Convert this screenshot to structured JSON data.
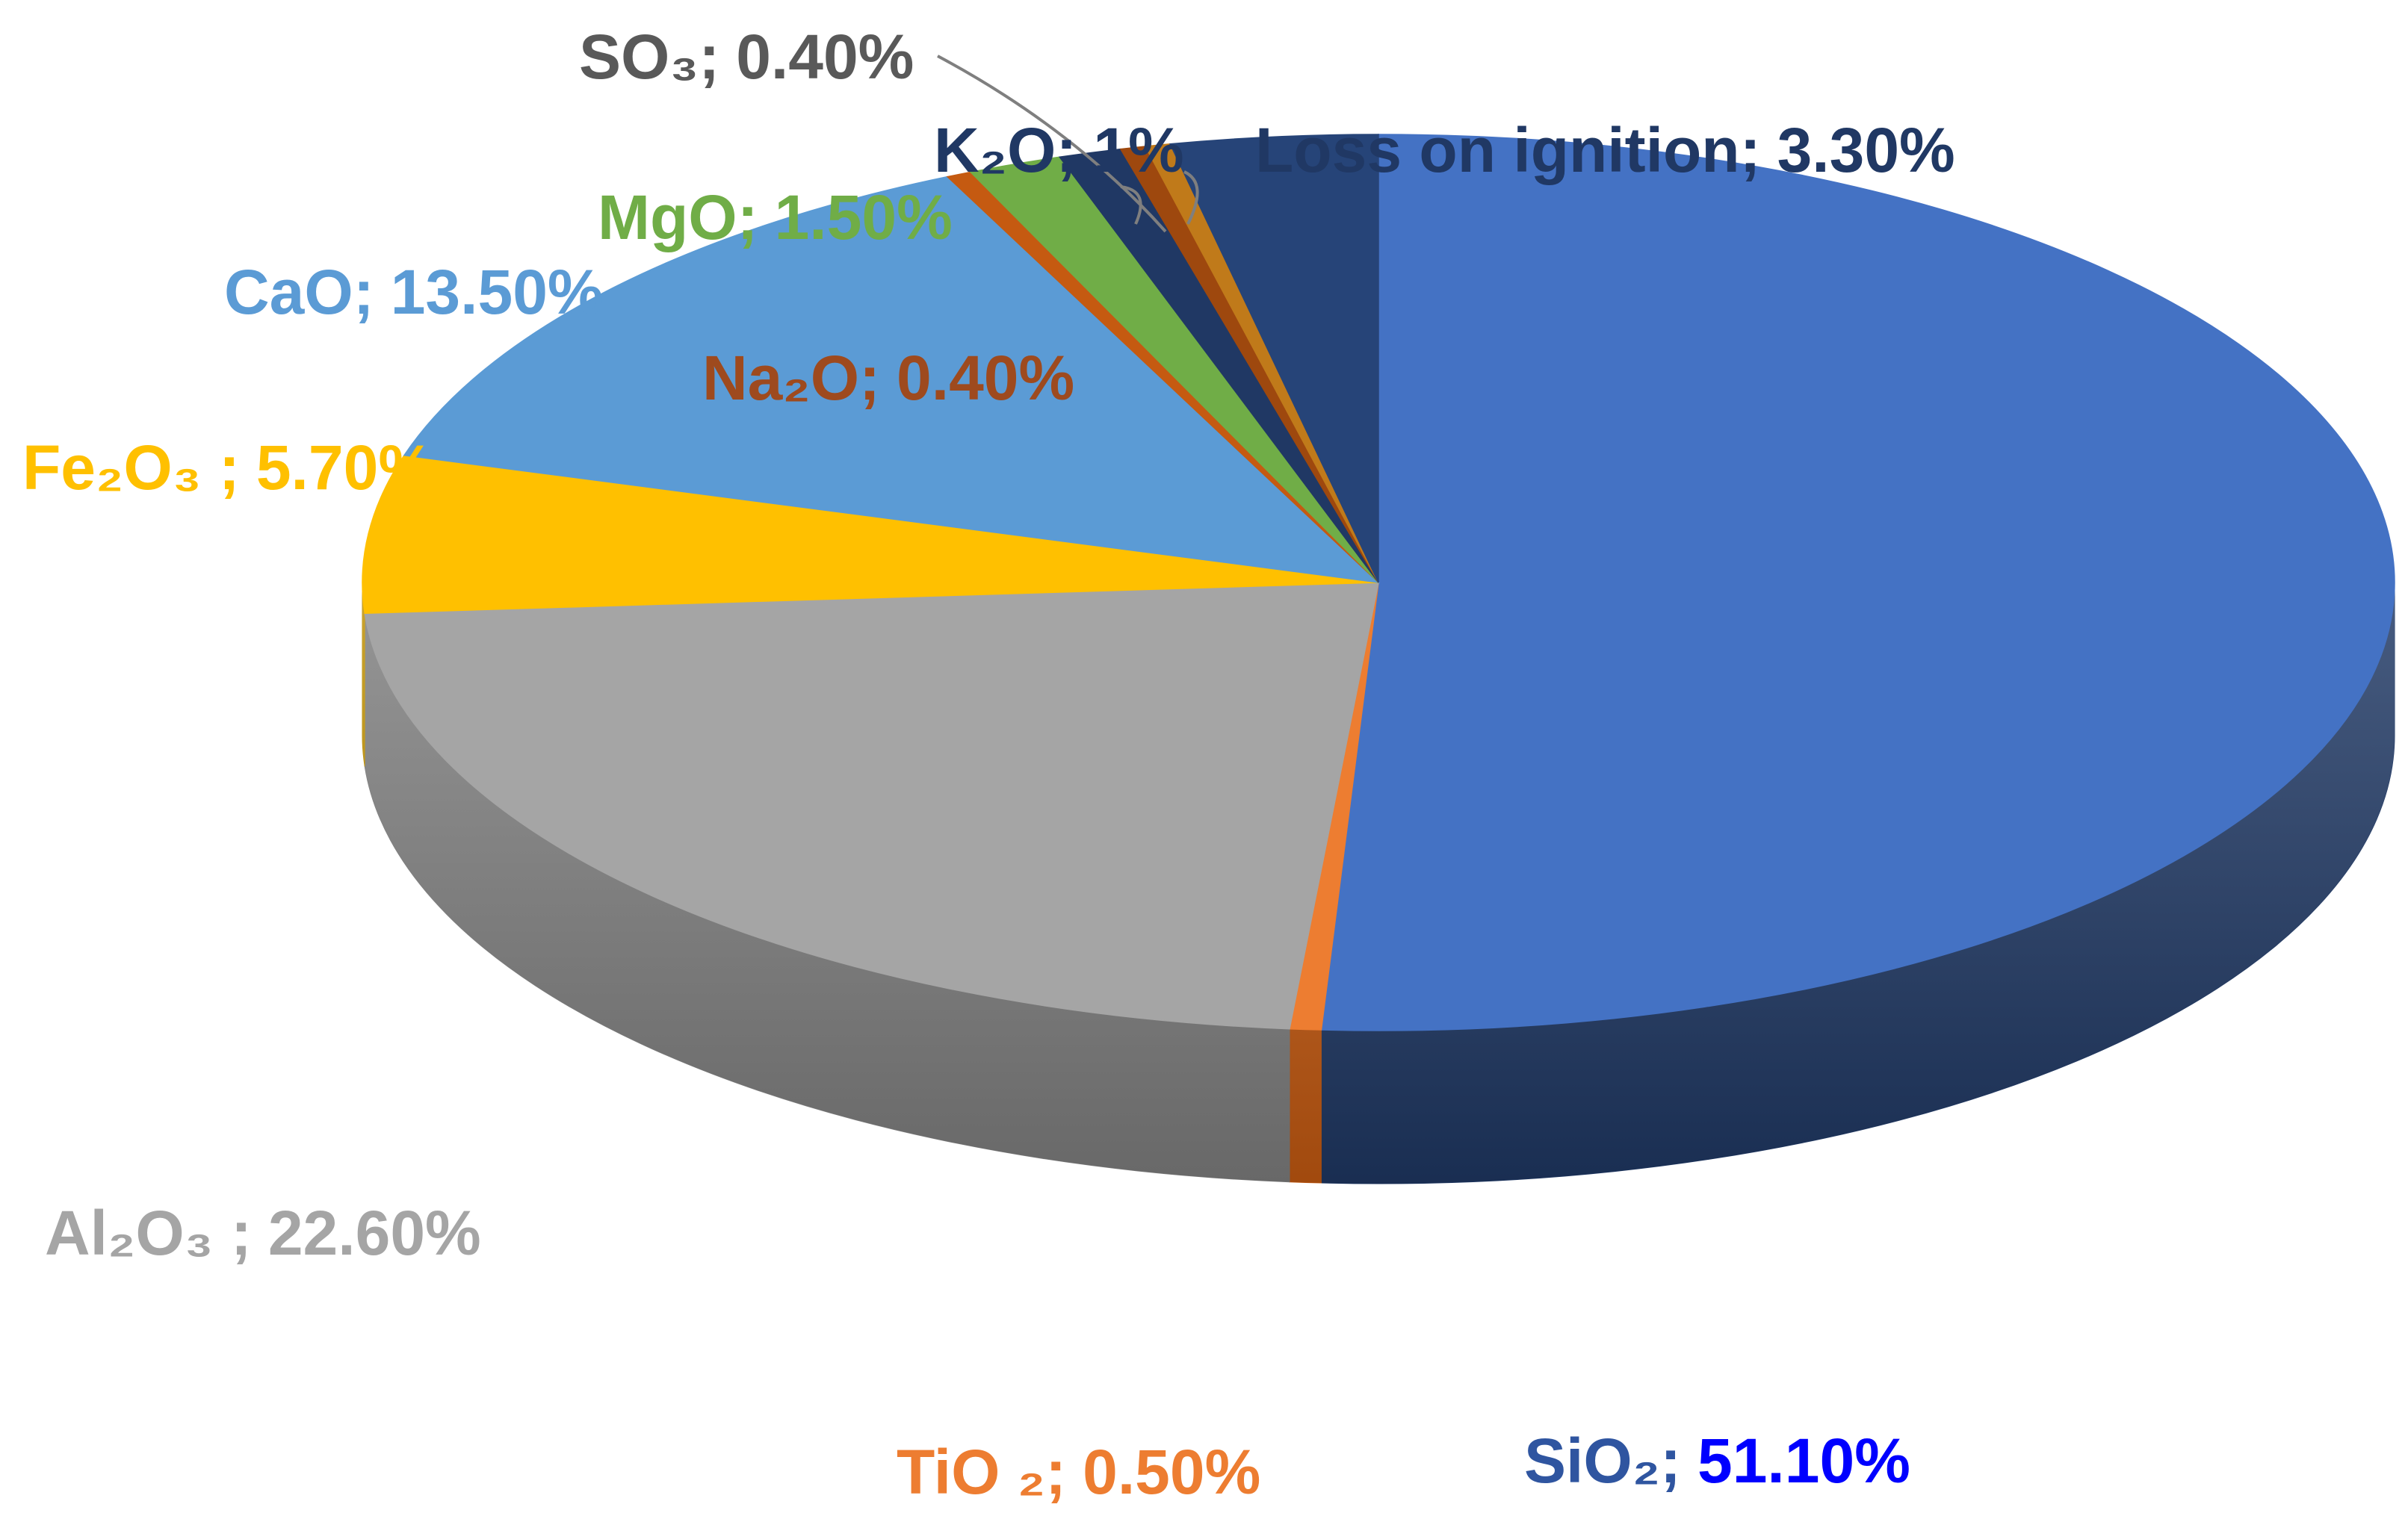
{
  "chart_data": {
    "type": "pie",
    "style": "3d",
    "title": "",
    "start_angle_deg": 0,
    "direction": "clockwise",
    "slices": [
      {
        "label": "SiO₂",
        "value": 51.1,
        "value_label": "51.10%",
        "color": "#4472C4",
        "side_color": "#1F3864",
        "label_color": "#2F55A0",
        "value_color": "#0000FF"
      },
      {
        "label": "TiO ₂",
        "value": 0.5,
        "value_label": "0.50%",
        "color": "#ED7D31",
        "side_color": "#C55A11",
        "label_color": "#ED7D31"
      },
      {
        "label": "Al₂O₃ ",
        "value": 22.6,
        "value_label": "22.60%",
        "color": "#A5A5A5",
        "side_color": "#7F7F7F",
        "label_color": "#A5A5A5"
      },
      {
        "label": "Fe₂O₃ ",
        "value": 5.7,
        "value_label": "5.70%",
        "color": "#FFC000",
        "side_color": "#BF9000",
        "label_color": "#FFC000"
      },
      {
        "label": "CaO",
        "value": 13.5,
        "value_label": "13.50%",
        "color": "#5B9BD5",
        "side_color": "#2E75B6",
        "label_color": "#5B9BD5"
      },
      {
        "label": "Na₂O",
        "value": 0.4,
        "value_label": "0.40%",
        "color": "#C55A11",
        "side_color": "#843C0C",
        "label_color": "#9E4A1E"
      },
      {
        "label": "MgO",
        "value": 1.5,
        "value_label": "1.50%",
        "color": "#70AD47",
        "side_color": "#507E32",
        "label_color": "#70AD47"
      },
      {
        "label": "K₂O",
        "value": 1.0,
        "value_label": "1%",
        "color": "#203864",
        "side_color": "#111E38",
        "label_color": "#203864"
      },
      {
        "label": "SO₃",
        "value": 0.4,
        "value_label": "0.40%",
        "color": "#9E480E",
        "side_color": "#6B300A",
        "label_color": "#595959"
      },
      {
        "label": "",
        "value": 0.4,
        "value_label": "",
        "color": "#C07A1A",
        "side_color": "#8A5612",
        "label_color": "#C07A1A"
      },
      {
        "label": "Loss on ignition",
        "value": 3.3,
        "value_label": "3.30%",
        "color": "#264478",
        "side_color": "#162A4D",
        "label_color": "#203864"
      }
    ]
  }
}
